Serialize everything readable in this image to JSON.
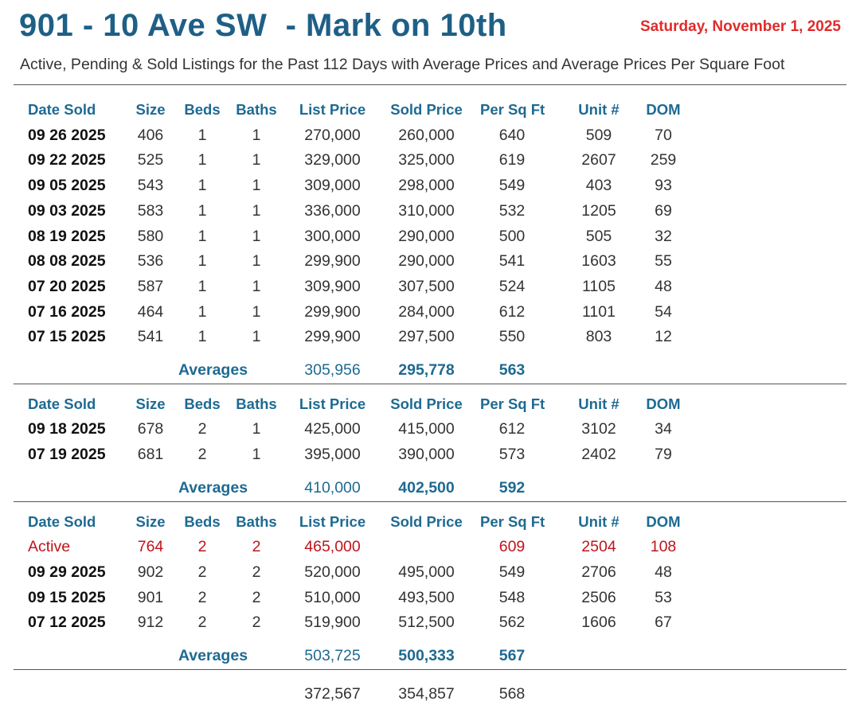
{
  "header": {
    "title": "901 - 10 Ave SW  - Mark on 10th",
    "date": "Saturday, November 1, 2025",
    "subtitle": "Active, Pending & Sold Listings for the Past 112 Days with Average Prices and Average Prices Per Square Foot"
  },
  "columns": {
    "date": "Date Sold",
    "size": "Size",
    "beds": "Beds",
    "baths": "Baths",
    "list": "List Price",
    "sold": "Sold Price",
    "psf": "Per Sq Ft",
    "unit": "Unit #",
    "dom": "DOM"
  },
  "averages_label": "Averages",
  "sections": [
    {
      "rows": [
        {
          "date": "09 26 2025",
          "size": "406",
          "beds": "1",
          "baths": "1",
          "list": "270,000",
          "sold": "260,000",
          "psf": "640",
          "unit": "509",
          "dom": "70"
        },
        {
          "date": "09 22 2025",
          "size": "525",
          "beds": "1",
          "baths": "1",
          "list": "329,000",
          "sold": "325,000",
          "psf": "619",
          "unit": "2607",
          "dom": "259"
        },
        {
          "date": "09 05 2025",
          "size": "543",
          "beds": "1",
          "baths": "1",
          "list": "309,000",
          "sold": "298,000",
          "psf": "549",
          "unit": "403",
          "dom": "93"
        },
        {
          "date": "09 03 2025",
          "size": "583",
          "beds": "1",
          "baths": "1",
          "list": "336,000",
          "sold": "310,000",
          "psf": "532",
          "unit": "1205",
          "dom": "69"
        },
        {
          "date": "08 19 2025",
          "size": "580",
          "beds": "1",
          "baths": "1",
          "list": "300,000",
          "sold": "290,000",
          "psf": "500",
          "unit": "505",
          "dom": "32"
        },
        {
          "date": "08 08 2025",
          "size": "536",
          "beds": "1",
          "baths": "1",
          "list": "299,900",
          "sold": "290,000",
          "psf": "541",
          "unit": "1603",
          "dom": "55"
        },
        {
          "date": "07 20 2025",
          "size": "587",
          "beds": "1",
          "baths": "1",
          "list": "309,900",
          "sold": "307,500",
          "psf": "524",
          "unit": "1105",
          "dom": "48"
        },
        {
          "date": "07 16 2025",
          "size": "464",
          "beds": "1",
          "baths": "1",
          "list": "299,900",
          "sold": "284,000",
          "psf": "612",
          "unit": "1101",
          "dom": "54"
        },
        {
          "date": "07 15 2025",
          "size": "541",
          "beds": "1",
          "baths": "1",
          "list": "299,900",
          "sold": "297,500",
          "psf": "550",
          "unit": "803",
          "dom": "12"
        }
      ],
      "averages": {
        "list": "305,956",
        "sold": "295,778",
        "psf": "563"
      }
    },
    {
      "rows": [
        {
          "date": "09 18 2025",
          "size": "678",
          "beds": "2",
          "baths": "1",
          "list": "425,000",
          "sold": "415,000",
          "psf": "612",
          "unit": "3102",
          "dom": "34"
        },
        {
          "date": "07 19 2025",
          "size": "681",
          "beds": "2",
          "baths": "1",
          "list": "395,000",
          "sold": "390,000",
          "psf": "573",
          "unit": "2402",
          "dom": "79"
        }
      ],
      "averages": {
        "list": "410,000",
        "sold": "402,500",
        "psf": "592"
      }
    },
    {
      "rows": [
        {
          "date": "Active",
          "status": "active",
          "size": "764",
          "beds": "2",
          "baths": "2",
          "list": "465,000",
          "sold": "",
          "psf": "609",
          "unit": "2504",
          "dom": "108"
        },
        {
          "date": "09 29 2025",
          "size": "902",
          "beds": "2",
          "baths": "2",
          "list": "520,000",
          "sold": "495,000",
          "psf": "549",
          "unit": "2706",
          "dom": "48"
        },
        {
          "date": "09 15 2025",
          "size": "901",
          "beds": "2",
          "baths": "2",
          "list": "510,000",
          "sold": "493,500",
          "psf": "548",
          "unit": "2506",
          "dom": "53"
        },
        {
          "date": "07 12 2025",
          "size": "912",
          "beds": "2",
          "baths": "2",
          "list": "519,900",
          "sold": "512,500",
          "psf": "562",
          "unit": "1606",
          "dom": "67"
        }
      ],
      "averages": {
        "list": "503,725",
        "sold": "500,333",
        "psf": "567"
      }
    }
  ],
  "totals": {
    "list": "372,567",
    "sold": "354,857",
    "psf": "568"
  },
  "colors": {
    "title": "#1e5f86",
    "header": "#1e6a92",
    "date": "#e02b2b",
    "active": "#c0141c"
  }
}
